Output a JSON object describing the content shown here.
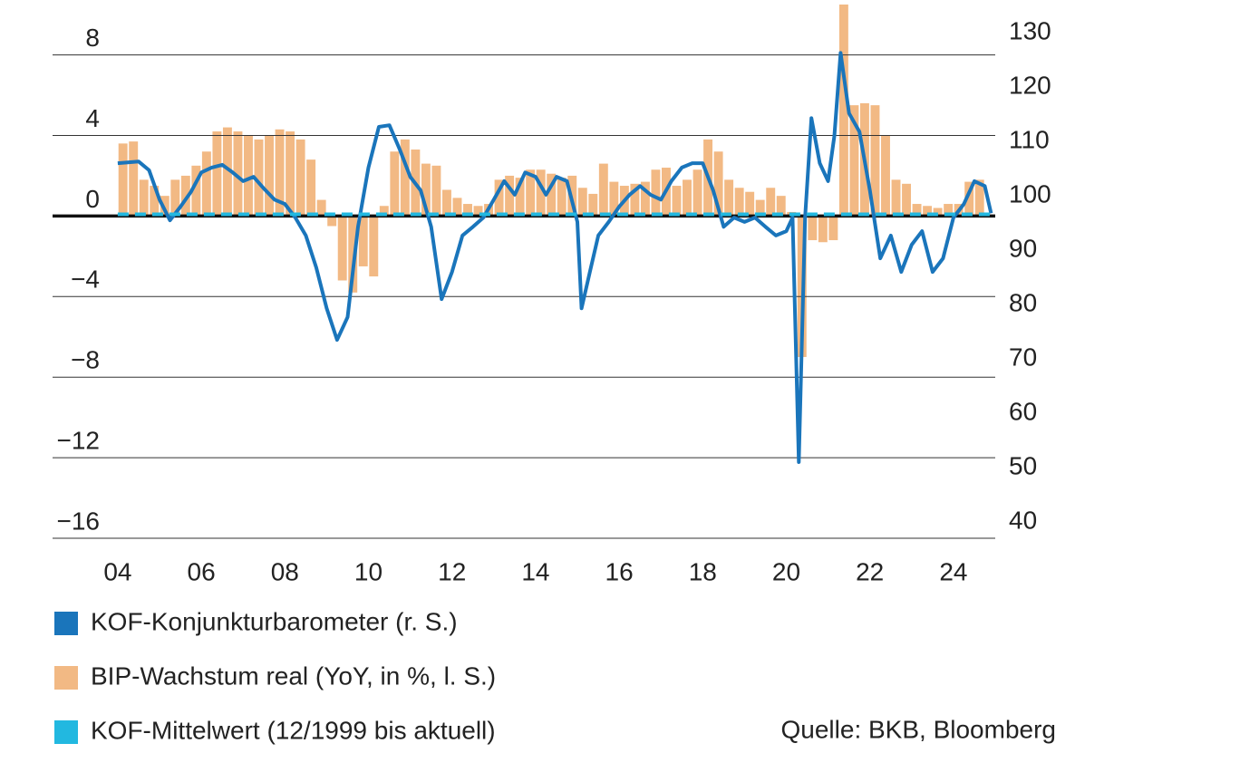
{
  "chart_data": {
    "type": "combo",
    "xlim": [
      2002.44,
      2025
    ],
    "xticks": [
      {
        "value": 2004,
        "label": "04"
      },
      {
        "value": 2006,
        "label": "06"
      },
      {
        "value": 2008,
        "label": "08"
      },
      {
        "value": 2010,
        "label": "10"
      },
      {
        "value": 2012,
        "label": "12"
      },
      {
        "value": 2014,
        "label": "14"
      },
      {
        "value": 2016,
        "label": "16"
      },
      {
        "value": 2018,
        "label": "18"
      },
      {
        "value": 2020,
        "label": "20"
      },
      {
        "value": 2022,
        "label": "22"
      },
      {
        "value": 2024,
        "label": "24"
      }
    ],
    "ylim": [
      -16,
      10.5
    ],
    "yticks": [
      {
        "value": -16,
        "label": "−16"
      },
      {
        "value": -12,
        "label": "−12"
      },
      {
        "value": -8,
        "label": "−8"
      },
      {
        "value": -4,
        "label": "−4"
      },
      0,
      4,
      8
    ],
    "y2lim": [
      37,
      135.2
    ],
    "y2ticks": [
      40,
      50,
      60,
      70,
      80,
      90,
      100,
      110,
      120,
      130
    ],
    "grid": true,
    "series": [
      {
        "name": "KOF-Konjunkturbarometer (r. S.)",
        "type": "line",
        "axis": "y2",
        "color": "#1a75bb",
        "x": [
          2004,
          2004.5,
          2004.75,
          2005,
          2005.25,
          2005.5,
          2005.75,
          2006,
          2006.25,
          2006.5,
          2006.75,
          2007,
          2007.25,
          2007.5,
          2007.75,
          2008,
          2008.25,
          2008.5,
          2008.75,
          2009,
          2009.25,
          2009.5,
          2009.75,
          2010,
          2010.25,
          2010.5,
          2010.75,
          2011,
          2011.25,
          2011.5,
          2011.75,
          2012,
          2012.25,
          2012.5,
          2012.75,
          2013,
          2013.25,
          2013.5,
          2013.75,
          2014,
          2014.25,
          2014.5,
          2014.75,
          2015,
          2015.1,
          2015.3,
          2015.5,
          2015.75,
          2016,
          2016.25,
          2016.5,
          2016.75,
          2017,
          2017.25,
          2017.5,
          2017.75,
          2018,
          2018.25,
          2018.5,
          2018.75,
          2019,
          2019.25,
          2019.5,
          2019.75,
          2020,
          2020.15,
          2020.3,
          2020.45,
          2020.6,
          2020.8,
          2021,
          2021.15,
          2021.3,
          2021.5,
          2021.75,
          2022,
          2022.25,
          2022.5,
          2022.75,
          2023,
          2023.25,
          2023.5,
          2023.75,
          2024,
          2024.25,
          2024.5,
          2024.75,
          2024.9
        ],
        "values": [
          106,
          106.3,
          104.7,
          99.3,
          95.5,
          98,
          100.7,
          104.3,
          105.2,
          105.7,
          104.3,
          102.7,
          103.5,
          101.3,
          99.3,
          98.5,
          96,
          92.7,
          86.8,
          79.3,
          73.5,
          77.7,
          94.3,
          105.2,
          112.7,
          113,
          108.5,
          103.5,
          101,
          94.3,
          81,
          86,
          92.7,
          94.3,
          96,
          99.3,
          102.7,
          100.2,
          104.3,
          103.5,
          100.2,
          103.5,
          102.7,
          95.2,
          79.3,
          86,
          92.7,
          95.2,
          98,
          100.2,
          101.8,
          100.2,
          99.3,
          102.7,
          105.2,
          106,
          106,
          101,
          94.3,
          96,
          95.2,
          96,
          94.3,
          92.7,
          93.5,
          96,
          51,
          96,
          114.3,
          106,
          102.7,
          111,
          126.3,
          115.2,
          111.8,
          101,
          88.5,
          92.7,
          86,
          91,
          93.5,
          86,
          88.5,
          96,
          98.5,
          102.7,
          101.8,
          96.8
        ]
      },
      {
        "name": "BIP-Wachstum real (YoY, in %, l. S.)",
        "type": "bar",
        "axis": "y",
        "color": "#f2b984",
        "x": [
          2004,
          2004.25,
          2004.5,
          2004.75,
          2005,
          2005.25,
          2005.5,
          2005.75,
          2006,
          2006.25,
          2006.5,
          2006.75,
          2007,
          2007.25,
          2007.5,
          2007.75,
          2008,
          2008.25,
          2008.5,
          2008.75,
          2009,
          2009.25,
          2009.5,
          2009.75,
          2010,
          2010.25,
          2010.5,
          2010.75,
          2011,
          2011.25,
          2011.5,
          2011.75,
          2012,
          2012.25,
          2012.5,
          2012.75,
          2013,
          2013.25,
          2013.5,
          2013.75,
          2014,
          2014.25,
          2014.5,
          2014.75,
          2015,
          2015.25,
          2015.5,
          2015.75,
          2016,
          2016.25,
          2016.5,
          2016.75,
          2017,
          2017.25,
          2017.5,
          2017.75,
          2018,
          2018.25,
          2018.5,
          2018.75,
          2019,
          2019.25,
          2019.5,
          2019.75,
          2020,
          2020.25,
          2020.5,
          2020.75,
          2021,
          2021.25,
          2021.5,
          2021.75,
          2022,
          2022.25,
          2022.5,
          2022.75,
          2023,
          2023.25,
          2023.5,
          2023.75,
          2024,
          2024.25,
          2024.5
        ],
        "values": [
          3.6,
          3.7,
          1.8,
          1.5,
          1.0,
          1.8,
          2.0,
          2.5,
          3.2,
          4.2,
          4.4,
          4.2,
          4.0,
          3.8,
          4.0,
          4.3,
          4.2,
          3.8,
          2.8,
          0.8,
          -0.5,
          -3.2,
          -3.8,
          -2.5,
          -3.0,
          0.5,
          3.2,
          3.8,
          3.3,
          2.6,
          2.5,
          1.3,
          0.9,
          0.6,
          0.5,
          0.6,
          1.8,
          2.0,
          1.9,
          2.3,
          2.3,
          2.1,
          1.9,
          2.0,
          1.4,
          1.1,
          2.6,
          1.7,
          1.5,
          1.6,
          1.7,
          2.3,
          2.4,
          1.5,
          1.8,
          2.3,
          3.8,
          3.2,
          1.8,
          1.4,
          1.2,
          0.8,
          1.4,
          1.0,
          0.2,
          -7.0,
          -1.2,
          -1.3,
          -1.2,
          10.5,
          5.5,
          5.6,
          5.5,
          4.0,
          1.8,
          1.6,
          0.6,
          0.5,
          0.4,
          0.6,
          0.6,
          1.7,
          1.8
        ]
      },
      {
        "name": "KOF-Mittelwert (12/1999 bis aktuell)",
        "type": "dashed-line",
        "axis": "y2",
        "color": "#22b8e0",
        "x": [
          2004,
          2024.9
        ],
        "values": [
          96.6,
          96.6
        ]
      }
    ],
    "source": "Quelle: BKB, Bloomberg"
  }
}
